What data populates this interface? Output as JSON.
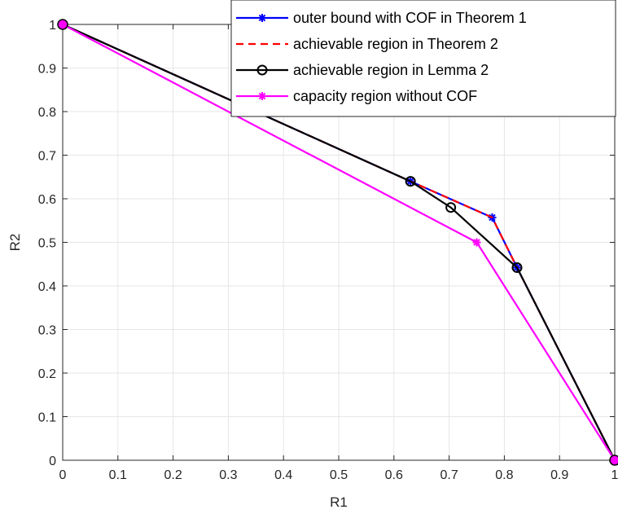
{
  "chart_data": {
    "type": "line",
    "xlabel": "R1",
    "ylabel": "R2",
    "xlim": [
      0,
      1
    ],
    "ylim": [
      0,
      1
    ],
    "xticks": [
      "0",
      "0.1",
      "0.2",
      "0.3",
      "0.4",
      "0.5",
      "0.6",
      "0.7",
      "0.8",
      "0.9",
      "1"
    ],
    "yticks": [
      "0",
      "0.1",
      "0.2",
      "0.3",
      "0.4",
      "0.5",
      "0.6",
      "0.7",
      "0.8",
      "0.9",
      "1"
    ],
    "grid": true,
    "legend_position": "top-right",
    "series": [
      {
        "name": "outer bound with COF in Theorem 1",
        "color": "#0000ff",
        "line_style": "solid",
        "marker": "asterisk",
        "x": [
          0,
          0.63,
          0.778,
          0.823,
          1
        ],
        "y": [
          1,
          0.64,
          0.557,
          0.442,
          0
        ]
      },
      {
        "name": "achievable region in Theorem 2",
        "color": "#ff0000",
        "line_style": "dashed",
        "marker": "none",
        "x": [
          0,
          0.63,
          0.778,
          0.823,
          1
        ],
        "y": [
          1,
          0.64,
          0.557,
          0.442,
          0
        ]
      },
      {
        "name": "achievable region in Lemma 2",
        "color": "#000000",
        "line_style": "solid",
        "marker": "circle",
        "x": [
          0,
          0.63,
          0.703,
          0.823,
          1
        ],
        "y": [
          1,
          0.64,
          0.58,
          0.442,
          0
        ]
      },
      {
        "name": "capacity region without COF",
        "color": "#ff00ff",
        "line_style": "solid",
        "marker": "asterisk",
        "x": [
          0,
          0.75,
          1
        ],
        "y": [
          1,
          0.5,
          0
        ]
      }
    ]
  }
}
